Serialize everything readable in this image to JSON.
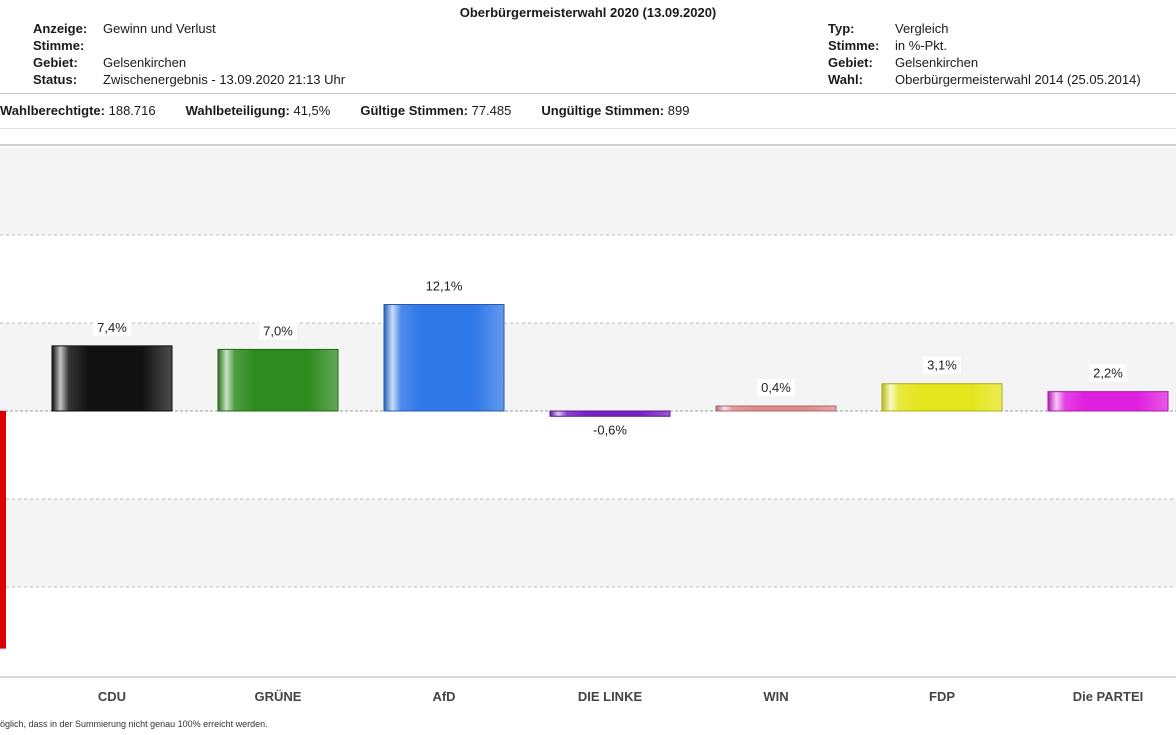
{
  "header": {
    "title": "Oberbürgermeisterwahl 2020 (13.09.2020)",
    "left": [
      {
        "label": "Anzeige:",
        "value": "Gewinn und Verlust"
      },
      {
        "label": "Stimme:",
        "value": ""
      },
      {
        "label": "Gebiet:",
        "value": "Gelsenkirchen"
      },
      {
        "label": "Status:",
        "value": "Zwischenergebnis - 13.09.2020 21:13 Uhr"
      }
    ],
    "right": [
      {
        "label": "Typ:",
        "value": "Vergleich"
      },
      {
        "label": "Stimme:",
        "value": "in %-Pkt."
      },
      {
        "label": "Gebiet:",
        "value": "Gelsenkirchen"
      },
      {
        "label": "Wahl:",
        "value": "Oberbürgermeisterwahl 2014 (25.05.2014)"
      }
    ]
  },
  "stats": [
    {
      "label": "Wahlberechtigte:",
      "value": "188.716"
    },
    {
      "label": "Wahlbeteiligung:",
      "value": "41,5%"
    },
    {
      "label": "Gültige Stimmen:",
      "value": "77.485"
    },
    {
      "label": "Ungültige Stimmen:",
      "value": "899"
    }
  ],
  "footnote": "öglich, dass in der Summierung nicht genau 100% erreicht werden.",
  "chart_data": {
    "type": "bar",
    "categories": [
      "CDU",
      "GRÜNE",
      "AfD",
      "DIE LINKE",
      "WIN",
      "FDP",
      "Die PARTEI"
    ],
    "values": [
      7.4,
      7.0,
      12.1,
      -0.6,
      0.4,
      3.1,
      2.2
    ],
    "labels": [
      "7,4%",
      "7,0%",
      "12,1%",
      "-0,6%",
      "0,4%",
      "3,1%",
      "2,2%"
    ],
    "colors": [
      "#111111",
      "#2e8b1f",
      "#2f78e8",
      "#7a1fc8",
      "#e08a8a",
      "#e5e51e",
      "#e020e0"
    ],
    "partial_bar": {
      "value": -27,
      "color": "#dd0000"
    },
    "ylim": [
      -30,
      30
    ],
    "gridlines": [
      -20,
      -10,
      10,
      20
    ],
    "grid": true
  }
}
